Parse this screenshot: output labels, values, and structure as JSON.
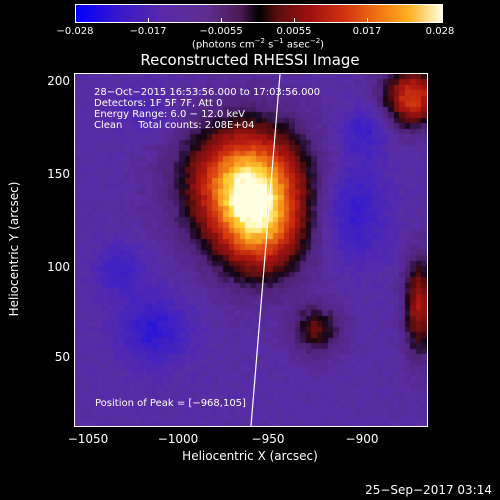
{
  "colorbar": {
    "ticks": [
      "−0.028",
      "−0.017",
      "−0.0055",
      "0.0055",
      "0.017",
      "0.028"
    ],
    "unit_prefix": "(photons cm",
    "unit_exp1": "−2",
    "unit_mid": " s",
    "unit_exp2": "−1",
    "unit_mid2": " asec",
    "unit_exp3": "−2",
    "unit_suffix": ")"
  },
  "plot": {
    "title": "Reconstructed RHESSI Image",
    "info": {
      "line1": "28−Oct−2015 16:53:56.000 to 17:03:56.000",
      "line2": "Detectors: 1F 5F 7F, Att 0",
      "line3": "Energy Range: 6.0 − 12.0 keV",
      "line4": "Clean     Total counts: 2.08E+04"
    },
    "peak_label": "Position of Peak = [−968,105]",
    "xlabel": "Heliocentric X (arcsec)",
    "ylabel": "Heliocentric Y (arcsec)",
    "xticks": [
      "−1050",
      "−1000",
      "−950",
      "−900"
    ],
    "yticks": [
      "200",
      "150",
      "100",
      "50"
    ]
  },
  "footer": {
    "timestamp": "25−Sep−2017 03:14"
  },
  "colors": {
    "limb_line": "#ffffff",
    "background": "#000000"
  }
}
